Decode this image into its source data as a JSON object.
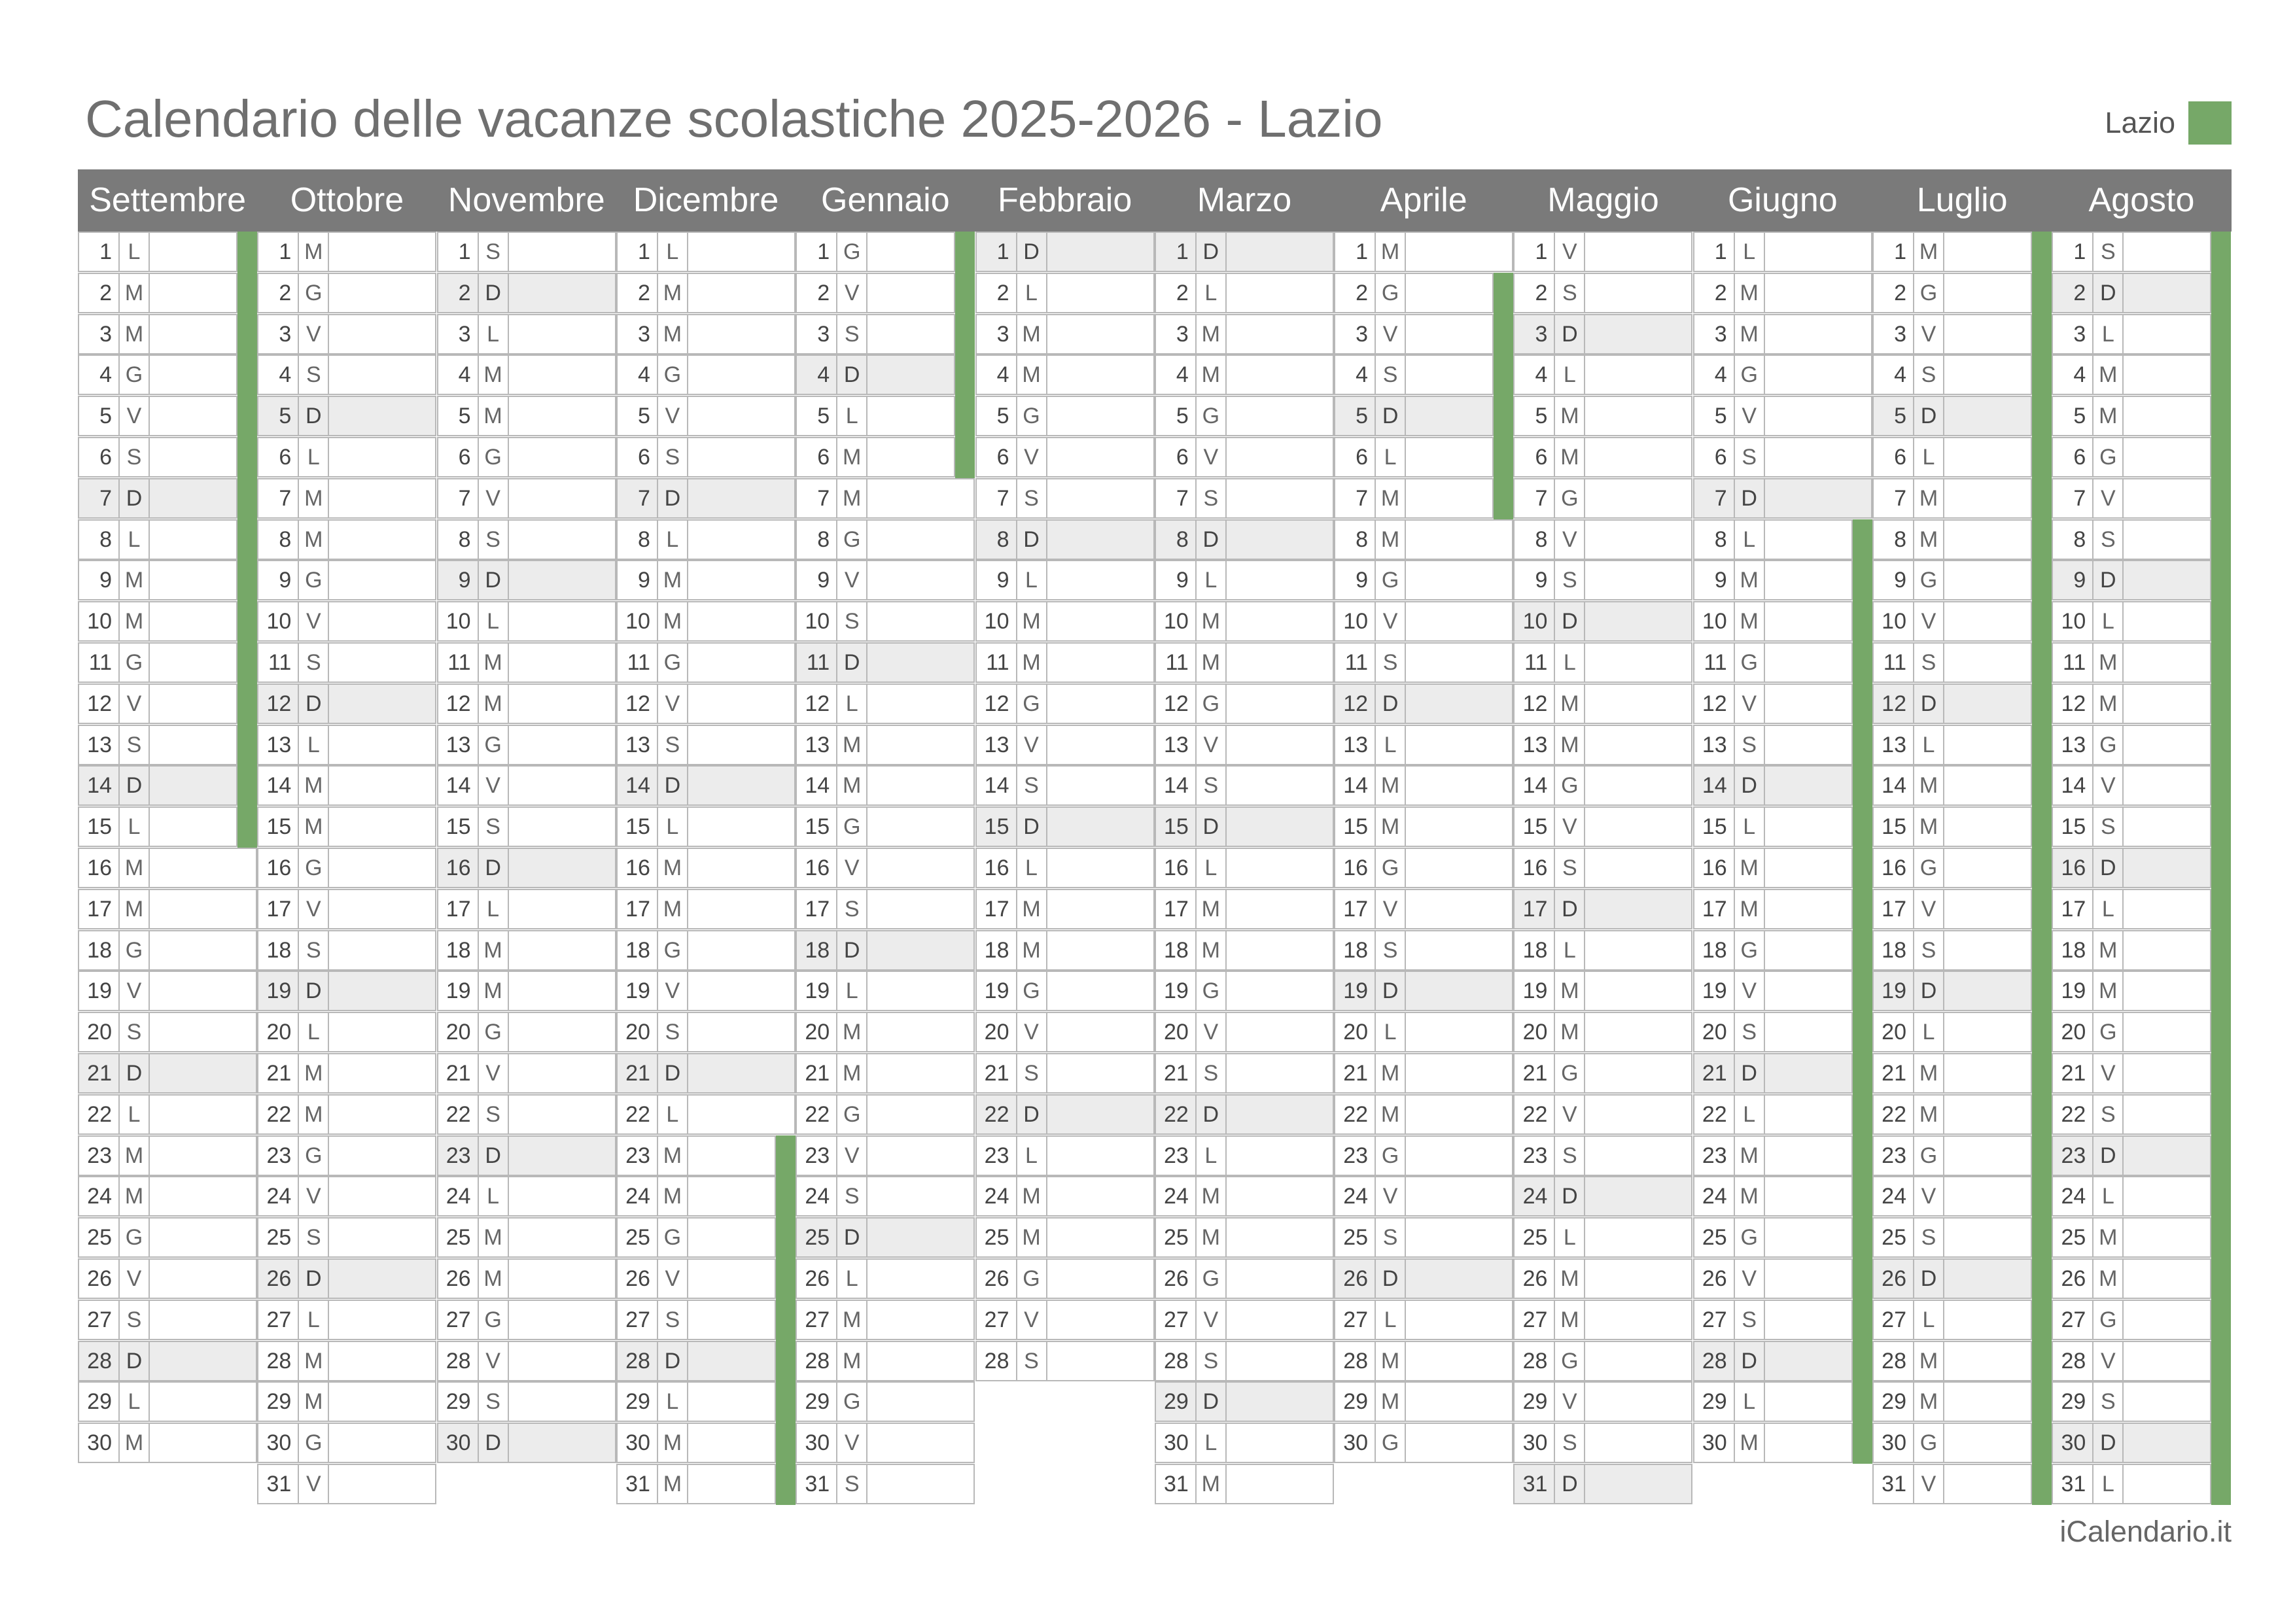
{
  "title": "Calendario delle vacanze scolastiche 2025-2026 - Lazio",
  "legend": {
    "label": "Lazio",
    "color": "#76a868"
  },
  "footer": "iCalendario.it",
  "months": [
    {
      "name": "Settembre",
      "days": 30,
      "start": "L",
      "holidays": [
        [
          1,
          15
        ]
      ]
    },
    {
      "name": "Ottobre",
      "days": 31,
      "start": "M",
      "holidays": []
    },
    {
      "name": "Novembre",
      "days": 30,
      "start": "S",
      "holidays": []
    },
    {
      "name": "Dicembre",
      "days": 31,
      "start": "L",
      "holidays": [
        [
          23,
          31
        ]
      ]
    },
    {
      "name": "Gennaio",
      "days": 31,
      "start": "G",
      "holidays": [
        [
          1,
          6
        ]
      ]
    },
    {
      "name": "Febbraio",
      "days": 28,
      "start": "D",
      "holidays": []
    },
    {
      "name": "Marzo",
      "days": 31,
      "start": "D",
      "holidays": []
    },
    {
      "name": "Aprile",
      "days": 30,
      "start": "M",
      "holidays": [
        [
          2,
          7
        ]
      ]
    },
    {
      "name": "Maggio",
      "days": 31,
      "start": "V",
      "holidays": []
    },
    {
      "name": "Giugno",
      "days": 30,
      "start": "L",
      "holidays": [
        [
          8,
          30
        ]
      ]
    },
    {
      "name": "Luglio",
      "days": 31,
      "start": "M",
      "holidays": [
        [
          1,
          31
        ]
      ]
    },
    {
      "name": "Agosto",
      "days": 31,
      "start": "S",
      "holidays": [
        [
          1,
          31
        ]
      ]
    }
  ],
  "weekday_letters": [
    "L",
    "M",
    "M",
    "G",
    "V",
    "S",
    "D"
  ],
  "highlighted_days": {
    "Ottobre": [],
    "Dicembre": [
      8,
      25,
      26
    ],
    "Gennaio": [
      6
    ],
    "Aprile": [
      6,
      25
    ],
    "Maggio": [
      1
    ],
    "Giugno": [],
    "Agosto": [
      15
    ]
  }
}
